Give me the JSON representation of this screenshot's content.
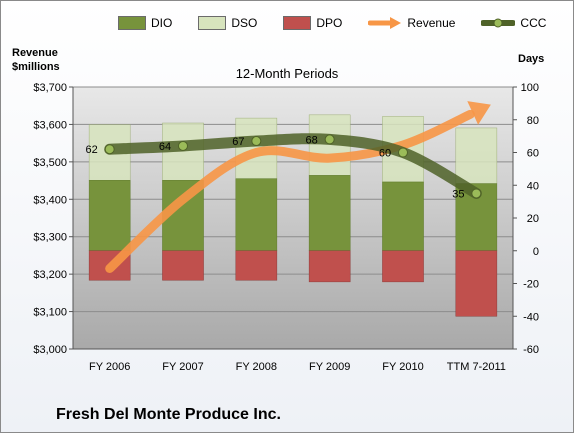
{
  "chart_data": {
    "type": "bar",
    "title": "12-Month Periods",
    "company": "Fresh Del Monte Produce Inc.",
    "categories": [
      "FY 2006",
      "FY 2007",
      "FY 2008",
      "FY 2009",
      "FY 2010",
      "TTM 7-2011"
    ],
    "left_axis": {
      "label_line1": "Revenue",
      "label_line2": "$millions",
      "range": [
        3000,
        3700
      ],
      "ticks": [
        "$3,000",
        "$3,100",
        "$3,200",
        "$3,300",
        "$3,400",
        "$3,500",
        "$3,600",
        "$3,700"
      ]
    },
    "right_axis": {
      "label": "Days",
      "range": [
        -60,
        100
      ],
      "ticks": [
        "-60",
        "-40",
        "-20",
        "0",
        "20",
        "40",
        "60",
        "80",
        "100"
      ]
    },
    "series": [
      {
        "name": "DIO",
        "axis": "right",
        "kind": "stacked-bar-positive",
        "values": [
          43,
          43,
          44,
          46,
          42,
          41
        ]
      },
      {
        "name": "DSO",
        "axis": "right",
        "kind": "stacked-bar-positive",
        "values": [
          34,
          35,
          37,
          37,
          40,
          34
        ]
      },
      {
        "name": "DPO",
        "axis": "right",
        "kind": "bar-negative",
        "values": [
          -18,
          -18,
          -18,
          -19,
          -19,
          -40
        ]
      },
      {
        "name": "Revenue",
        "axis": "left",
        "kind": "arrow-line",
        "values": [
          3215,
          3400,
          3525,
          3510,
          3545,
          3635
        ]
      },
      {
        "name": "CCC",
        "axis": "right",
        "kind": "line",
        "values": [
          62,
          64,
          67,
          68,
          60,
          35
        ]
      }
    ],
    "ccc_labels": [
      "62",
      "64",
      "67",
      "68",
      "60",
      "35"
    ],
    "grid": true,
    "legend_position": "top",
    "colors": {
      "DIO": "#77933c",
      "DSO": "#d7e4bd",
      "DPO": "#c0504d",
      "Revenue": "#f79646",
      "CCC": "#4f6228",
      "plot_background": "#c8c8c8"
    }
  }
}
